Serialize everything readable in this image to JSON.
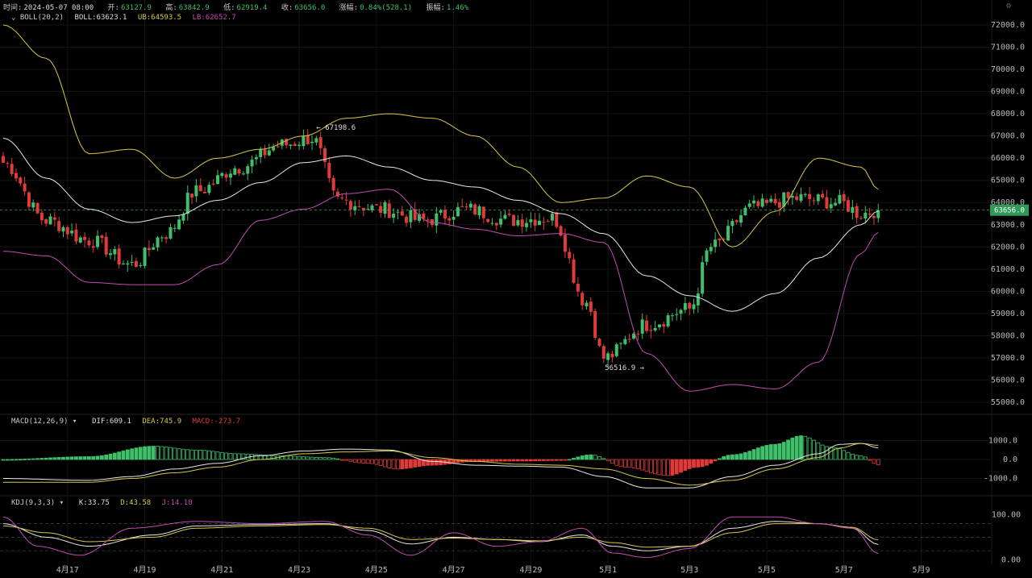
{
  "topbar": {
    "time_label": "时间:",
    "time": "2024-05-07 08:00",
    "open_label": "开:",
    "open": "63127.9",
    "high_label": "高:",
    "high": "63842.9",
    "low_label": "低:",
    "low": "62919.4",
    "close_label": "收:",
    "close": "63656.0",
    "change_label": "涨幅:",
    "change": "0.84%(528.1)",
    "amp_label": "振幅:",
    "amp": "1.46%"
  },
  "boll": {
    "name": "BOLL(20,2)",
    "mid_label": "BOLL:",
    "mid": "63623.1",
    "ub_label": "UB:",
    "ub": "64593.5",
    "lb_label": "LB:",
    "lb": "62652.7"
  },
  "macd": {
    "name": "MACD(12,26,9)",
    "dif_label": "DIF:",
    "dif": "609.1",
    "dea_label": "DEA:",
    "dea": "745.9",
    "macd_label": "MACD:",
    "macd": "-273.7"
  },
  "kdj": {
    "name": "KDJ(9,3,3)",
    "k_label": "K:",
    "k": "33.75",
    "d_label": "D:",
    "d": "43.58",
    "j_label": "J:",
    "j": "14.10"
  },
  "colors": {
    "up": "#3fbf6a",
    "down": "#e03b3b",
    "ub": "#d6c94a",
    "mid": "#e8e8e8",
    "lb": "#c24bb6",
    "price_tag": "#2e9a55"
  },
  "chart_data": {
    "type": "candlestick",
    "x_ticks": [
      "4月17",
      "4月19",
      "4月21",
      "4月23",
      "4月25",
      "4月27",
      "4月29",
      "5月1",
      "5月3",
      "5月5",
      "5月7",
      "5月9"
    ],
    "price_ticks": [
      "72000.0",
      "71000.0",
      "70000.0",
      "69000.0",
      "68000.0",
      "67000.0",
      "66000.0",
      "65000.0",
      "64000.0",
      "63000.0",
      "62000.0",
      "61000.0",
      "60000.0",
      "59000.0",
      "58000.0",
      "57000.0",
      "56000.0",
      "55000.0"
    ],
    "macd_ticks": [
      "1000.0",
      "0.0",
      "-1000.0"
    ],
    "kdj_ticks": [
      "100.00",
      "0.00"
    ],
    "current_price": "63656.0",
    "high_marker": "67198.6",
    "low_marker": "56516.9",
    "price_anchors": [
      [
        0,
        65800
      ],
      [
        10,
        63200
      ],
      [
        20,
        62300
      ],
      [
        30,
        61200
      ],
      [
        38,
        62600
      ],
      [
        45,
        64500
      ],
      [
        55,
        65600
      ],
      [
        65,
        66600
      ],
      [
        72,
        66900
      ],
      [
        78,
        64100
      ],
      [
        88,
        63700
      ],
      [
        98,
        63200
      ],
      [
        108,
        63700
      ],
      [
        118,
        63200
      ],
      [
        128,
        63300
      ],
      [
        136,
        59500
      ],
      [
        140,
        57000
      ],
      [
        150,
        58500
      ],
      [
        160,
        59200
      ],
      [
        165,
        62000
      ],
      [
        175,
        63800
      ],
      [
        185,
        64200
      ],
      [
        195,
        64000
      ],
      [
        200,
        63500
      ],
      [
        204,
        63656
      ]
    ],
    "ub_anchors": [
      [
        0,
        72000
      ],
      [
        10,
        70500
      ],
      [
        20,
        66200
      ],
      [
        30,
        66400
      ],
      [
        40,
        65100
      ],
      [
        50,
        66000
      ],
      [
        60,
        66400
      ],
      [
        70,
        67000
      ],
      [
        80,
        67800
      ],
      [
        90,
        68000
      ],
      [
        100,
        67800
      ],
      [
        110,
        67000
      ],
      [
        120,
        65600
      ],
      [
        130,
        64000
      ],
      [
        140,
        64200
      ],
      [
        150,
        65200
      ],
      [
        160,
        64700
      ],
      [
        170,
        62000
      ],
      [
        180,
        63600
      ],
      [
        190,
        66000
      ],
      [
        200,
        65600
      ],
      [
        204,
        64594
      ]
    ],
    "mid_anchors": [
      [
        0,
        66900
      ],
      [
        10,
        65100
      ],
      [
        20,
        63700
      ],
      [
        30,
        63100
      ],
      [
        40,
        63400
      ],
      [
        50,
        64100
      ],
      [
        60,
        64900
      ],
      [
        70,
        65800
      ],
      [
        80,
        66100
      ],
      [
        90,
        65600
      ],
      [
        100,
        65000
      ],
      [
        110,
        64700
      ],
      [
        120,
        64100
      ],
      [
        130,
        63500
      ],
      [
        140,
        62600
      ],
      [
        150,
        60700
      ],
      [
        160,
        59800
      ],
      [
        170,
        59100
      ],
      [
        180,
        59900
      ],
      [
        190,
        61500
      ],
      [
        200,
        63000
      ],
      [
        204,
        63623
      ]
    ],
    "lb_anchors": [
      [
        0,
        61800
      ],
      [
        10,
        61600
      ],
      [
        20,
        60400
      ],
      [
        30,
        60300
      ],
      [
        40,
        60300
      ],
      [
        50,
        61200
      ],
      [
        60,
        63200
      ],
      [
        70,
        63700
      ],
      [
        80,
        64400
      ],
      [
        90,
        64600
      ],
      [
        100,
        63100
      ],
      [
        110,
        62800
      ],
      [
        120,
        62500
      ],
      [
        130,
        62600
      ],
      [
        140,
        62200
      ],
      [
        150,
        57200
      ],
      [
        160,
        55500
      ],
      [
        170,
        55800
      ],
      [
        180,
        55600
      ],
      [
        190,
        56800
      ],
      [
        200,
        61700
      ],
      [
        204,
        62653
      ]
    ],
    "dif_anchors": [
      [
        0,
        -1000
      ],
      [
        20,
        -1100
      ],
      [
        30,
        -900
      ],
      [
        40,
        -500
      ],
      [
        50,
        -200
      ],
      [
        60,
        200
      ],
      [
        70,
        450
      ],
      [
        80,
        550
      ],
      [
        90,
        500
      ],
      [
        100,
        -100
      ],
      [
        110,
        -300
      ],
      [
        120,
        -350
      ],
      [
        130,
        -400
      ],
      [
        140,
        -900
      ],
      [
        150,
        -1500
      ],
      [
        160,
        -1500
      ],
      [
        170,
        -900
      ],
      [
        180,
        -300
      ],
      [
        190,
        300
      ],
      [
        195,
        800
      ],
      [
        200,
        850
      ],
      [
        204,
        609
      ]
    ],
    "dea_anchors": [
      [
        0,
        -1200
      ],
      [
        20,
        -1200
      ],
      [
        30,
        -1000
      ],
      [
        40,
        -700
      ],
      [
        50,
        -400
      ],
      [
        60,
        0
      ],
      [
        70,
        300
      ],
      [
        80,
        400
      ],
      [
        90,
        450
      ],
      [
        100,
        100
      ],
      [
        110,
        -100
      ],
      [
        120,
        -250
      ],
      [
        130,
        -300
      ],
      [
        140,
        -500
      ],
      [
        150,
        -1000
      ],
      [
        160,
        -1350
      ],
      [
        170,
        -1100
      ],
      [
        180,
        -500
      ],
      [
        190,
        100
      ],
      [
        195,
        600
      ],
      [
        200,
        850
      ],
      [
        204,
        746
      ]
    ],
    "macd_hist_anchors": [
      [
        0,
        0
      ],
      [
        20,
        150
      ],
      [
        35,
        700
      ],
      [
        45,
        500
      ],
      [
        55,
        300
      ],
      [
        65,
        200
      ],
      [
        75,
        100
      ],
      [
        85,
        -200
      ],
      [
        92,
        -500
      ],
      [
        100,
        -300
      ],
      [
        110,
        -100
      ],
      [
        120,
        -80
      ],
      [
        130,
        -50
      ],
      [
        137,
        250
      ],
      [
        145,
        -400
      ],
      [
        155,
        -850
      ],
      [
        162,
        -400
      ],
      [
        170,
        250
      ],
      [
        180,
        800
      ],
      [
        186,
        1250
      ],
      [
        193,
        650
      ],
      [
        200,
        200
      ],
      [
        204,
        -274
      ]
    ],
    "k_anchors": [
      [
        0,
        80
      ],
      [
        10,
        50
      ],
      [
        20,
        30
      ],
      [
        35,
        55
      ],
      [
        45,
        75
      ],
      [
        60,
        78
      ],
      [
        75,
        80
      ],
      [
        85,
        65
      ],
      [
        95,
        35
      ],
      [
        105,
        50
      ],
      [
        115,
        45
      ],
      [
        125,
        40
      ],
      [
        135,
        55
      ],
      [
        142,
        30
      ],
      [
        150,
        20
      ],
      [
        160,
        30
      ],
      [
        170,
        70
      ],
      [
        180,
        85
      ],
      [
        190,
        80
      ],
      [
        198,
        70
      ],
      [
        204,
        34
      ]
    ],
    "d_anchors": [
      [
        0,
        75
      ],
      [
        10,
        60
      ],
      [
        20,
        40
      ],
      [
        35,
        50
      ],
      [
        45,
        70
      ],
      [
        60,
        75
      ],
      [
        75,
        78
      ],
      [
        85,
        70
      ],
      [
        95,
        45
      ],
      [
        105,
        48
      ],
      [
        115,
        45
      ],
      [
        125,
        42
      ],
      [
        135,
        50
      ],
      [
        142,
        38
      ],
      [
        150,
        28
      ],
      [
        160,
        30
      ],
      [
        170,
        60
      ],
      [
        180,
        80
      ],
      [
        190,
        80
      ],
      [
        198,
        72
      ],
      [
        204,
        44
      ]
    ],
    "j_anchors": [
      [
        0,
        95
      ],
      [
        8,
        30
      ],
      [
        18,
        10
      ],
      [
        30,
        70
      ],
      [
        45,
        85
      ],
      [
        60,
        80
      ],
      [
        75,
        85
      ],
      [
        85,
        55
      ],
      [
        95,
        10
      ],
      [
        105,
        60
      ],
      [
        115,
        30
      ],
      [
        125,
        40
      ],
      [
        135,
        70
      ],
      [
        142,
        15
      ],
      [
        150,
        5
      ],
      [
        160,
        25
      ],
      [
        170,
        95
      ],
      [
        180,
        95
      ],
      [
        190,
        80
      ],
      [
        198,
        70
      ],
      [
        204,
        14
      ]
    ]
  }
}
